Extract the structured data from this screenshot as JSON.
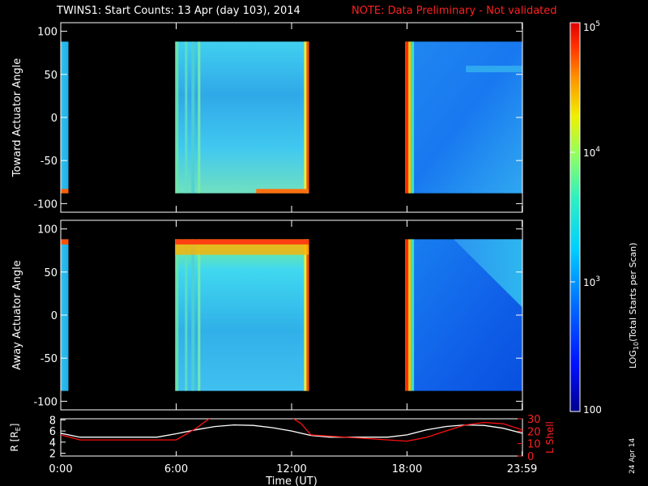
{
  "title": {
    "main": "TWINS1: Start Counts: 13 Apr (day 103), 2014",
    "note": "NOTE: Data Preliminary - Not validated",
    "note_color": "#ff2020"
  },
  "date_stamp": "24 Apr 14",
  "chart_data": [
    {
      "type": "heatmap",
      "name": "toward",
      "ylabel": "Toward Actuator Angle",
      "ylim": [
        -110,
        110
      ],
      "y_ticks": [
        "100",
        "50",
        "0",
        "-50",
        "-100"
      ],
      "y_tick_values": [
        100,
        50,
        0,
        -50,
        -100
      ],
      "x_tick_values_hours": [
        0,
        6,
        12,
        18,
        23.98
      ],
      "data_blocks_hours": [
        [
          0,
          0.4
        ],
        [
          5.95,
          12.9
        ],
        [
          17.9,
          24
        ]
      ],
      "data_angle_range": [
        -88,
        88
      ],
      "description_levels": "log10 counts approx 2.9-3.2 (cyan/blue) with high values near block edges"
    },
    {
      "type": "heatmap",
      "name": "away",
      "ylabel": "Away Actuator Angle",
      "ylim": [
        -110,
        110
      ],
      "y_ticks": [
        "100",
        "50",
        "0",
        "-50",
        "-100"
      ],
      "y_tick_values": [
        100,
        50,
        0,
        -50,
        -100
      ],
      "x_tick_values_hours": [
        0,
        6,
        12,
        18,
        23.98
      ],
      "data_blocks_hours": [
        [
          0,
          0.4
        ],
        [
          5.95,
          12.9
        ],
        [
          17.9,
          24
        ]
      ],
      "data_angle_range": [
        -88,
        88
      ]
    },
    {
      "type": "line",
      "name": "ephemeris",
      "ylabel_left": "R [R",
      "ylabel_left_sub": "E",
      "ylabel_left_end": "]",
      "ylabel_right": "L Shell",
      "left_ticks": [
        "8",
        "6",
        "4",
        "2"
      ],
      "left_tick_values": [
        8,
        6,
        4,
        2
      ],
      "left_ylim": [
        1.5,
        8.2
      ],
      "right_ticks": [
        "30",
        "20",
        "10",
        "0"
      ],
      "right_tick_values": [
        30,
        20,
        10,
        0
      ],
      "right_ylim": [
        0,
        30
      ],
      "x_ticks": [
        "0:00",
        "6:00",
        "12:00",
        "18:00",
        "23:59"
      ],
      "x_tick_values_hours": [
        0,
        6,
        12,
        18,
        23.98
      ],
      "xlabel": "Time (UT)",
      "series": [
        {
          "color": "#ffffff",
          "x": [
            0,
            1,
            2,
            3,
            4,
            5,
            6,
            7,
            8,
            9,
            10,
            11,
            12,
            13,
            14,
            15,
            16,
            17,
            18,
            19,
            20,
            21,
            22,
            23,
            24
          ],
          "values": [
            5.6,
            4.9,
            4.9,
            4.9,
            4.9,
            4.9,
            5.5,
            6.2,
            6.8,
            7.1,
            7.0,
            6.6,
            6.0,
            5.2,
            4.9,
            4.9,
            4.9,
            4.9,
            5.3,
            6.2,
            6.8,
            7.1,
            7.0,
            6.5,
            5.6
          ]
        },
        {
          "color": "#ff1010",
          "x": [
            0,
            0.5,
            1,
            2,
            3,
            4,
            5,
            6,
            7,
            7.8,
            8.5,
            9,
            10,
            11,
            12,
            12.5,
            13,
            14,
            15,
            16,
            17,
            18,
            19,
            20,
            21,
            22,
            23,
            24
          ],
          "values": [
            17,
            15,
            13,
            13,
            13,
            13,
            13,
            13,
            22,
            31,
            35,
            35,
            35,
            35,
            31,
            26,
            17,
            16,
            15,
            14,
            13,
            12,
            15,
            20,
            25,
            27,
            26,
            21
          ]
        }
      ]
    }
  ],
  "colorbar": {
    "label_pre": "LOG",
    "label_sub": "10",
    "label_post": "(Total Starts per Scan)",
    "ticks": [
      {
        "mant": "10",
        "exp": "5",
        "value": 100000
      },
      {
        "mant": "10",
        "exp": "4",
        "value": 10000
      },
      {
        "mant": "10",
        "exp": "3",
        "value": 1000
      },
      {
        "mant": "100",
        "exp": "",
        "value": 100
      }
    ],
    "range": [
      100,
      100000
    ]
  }
}
